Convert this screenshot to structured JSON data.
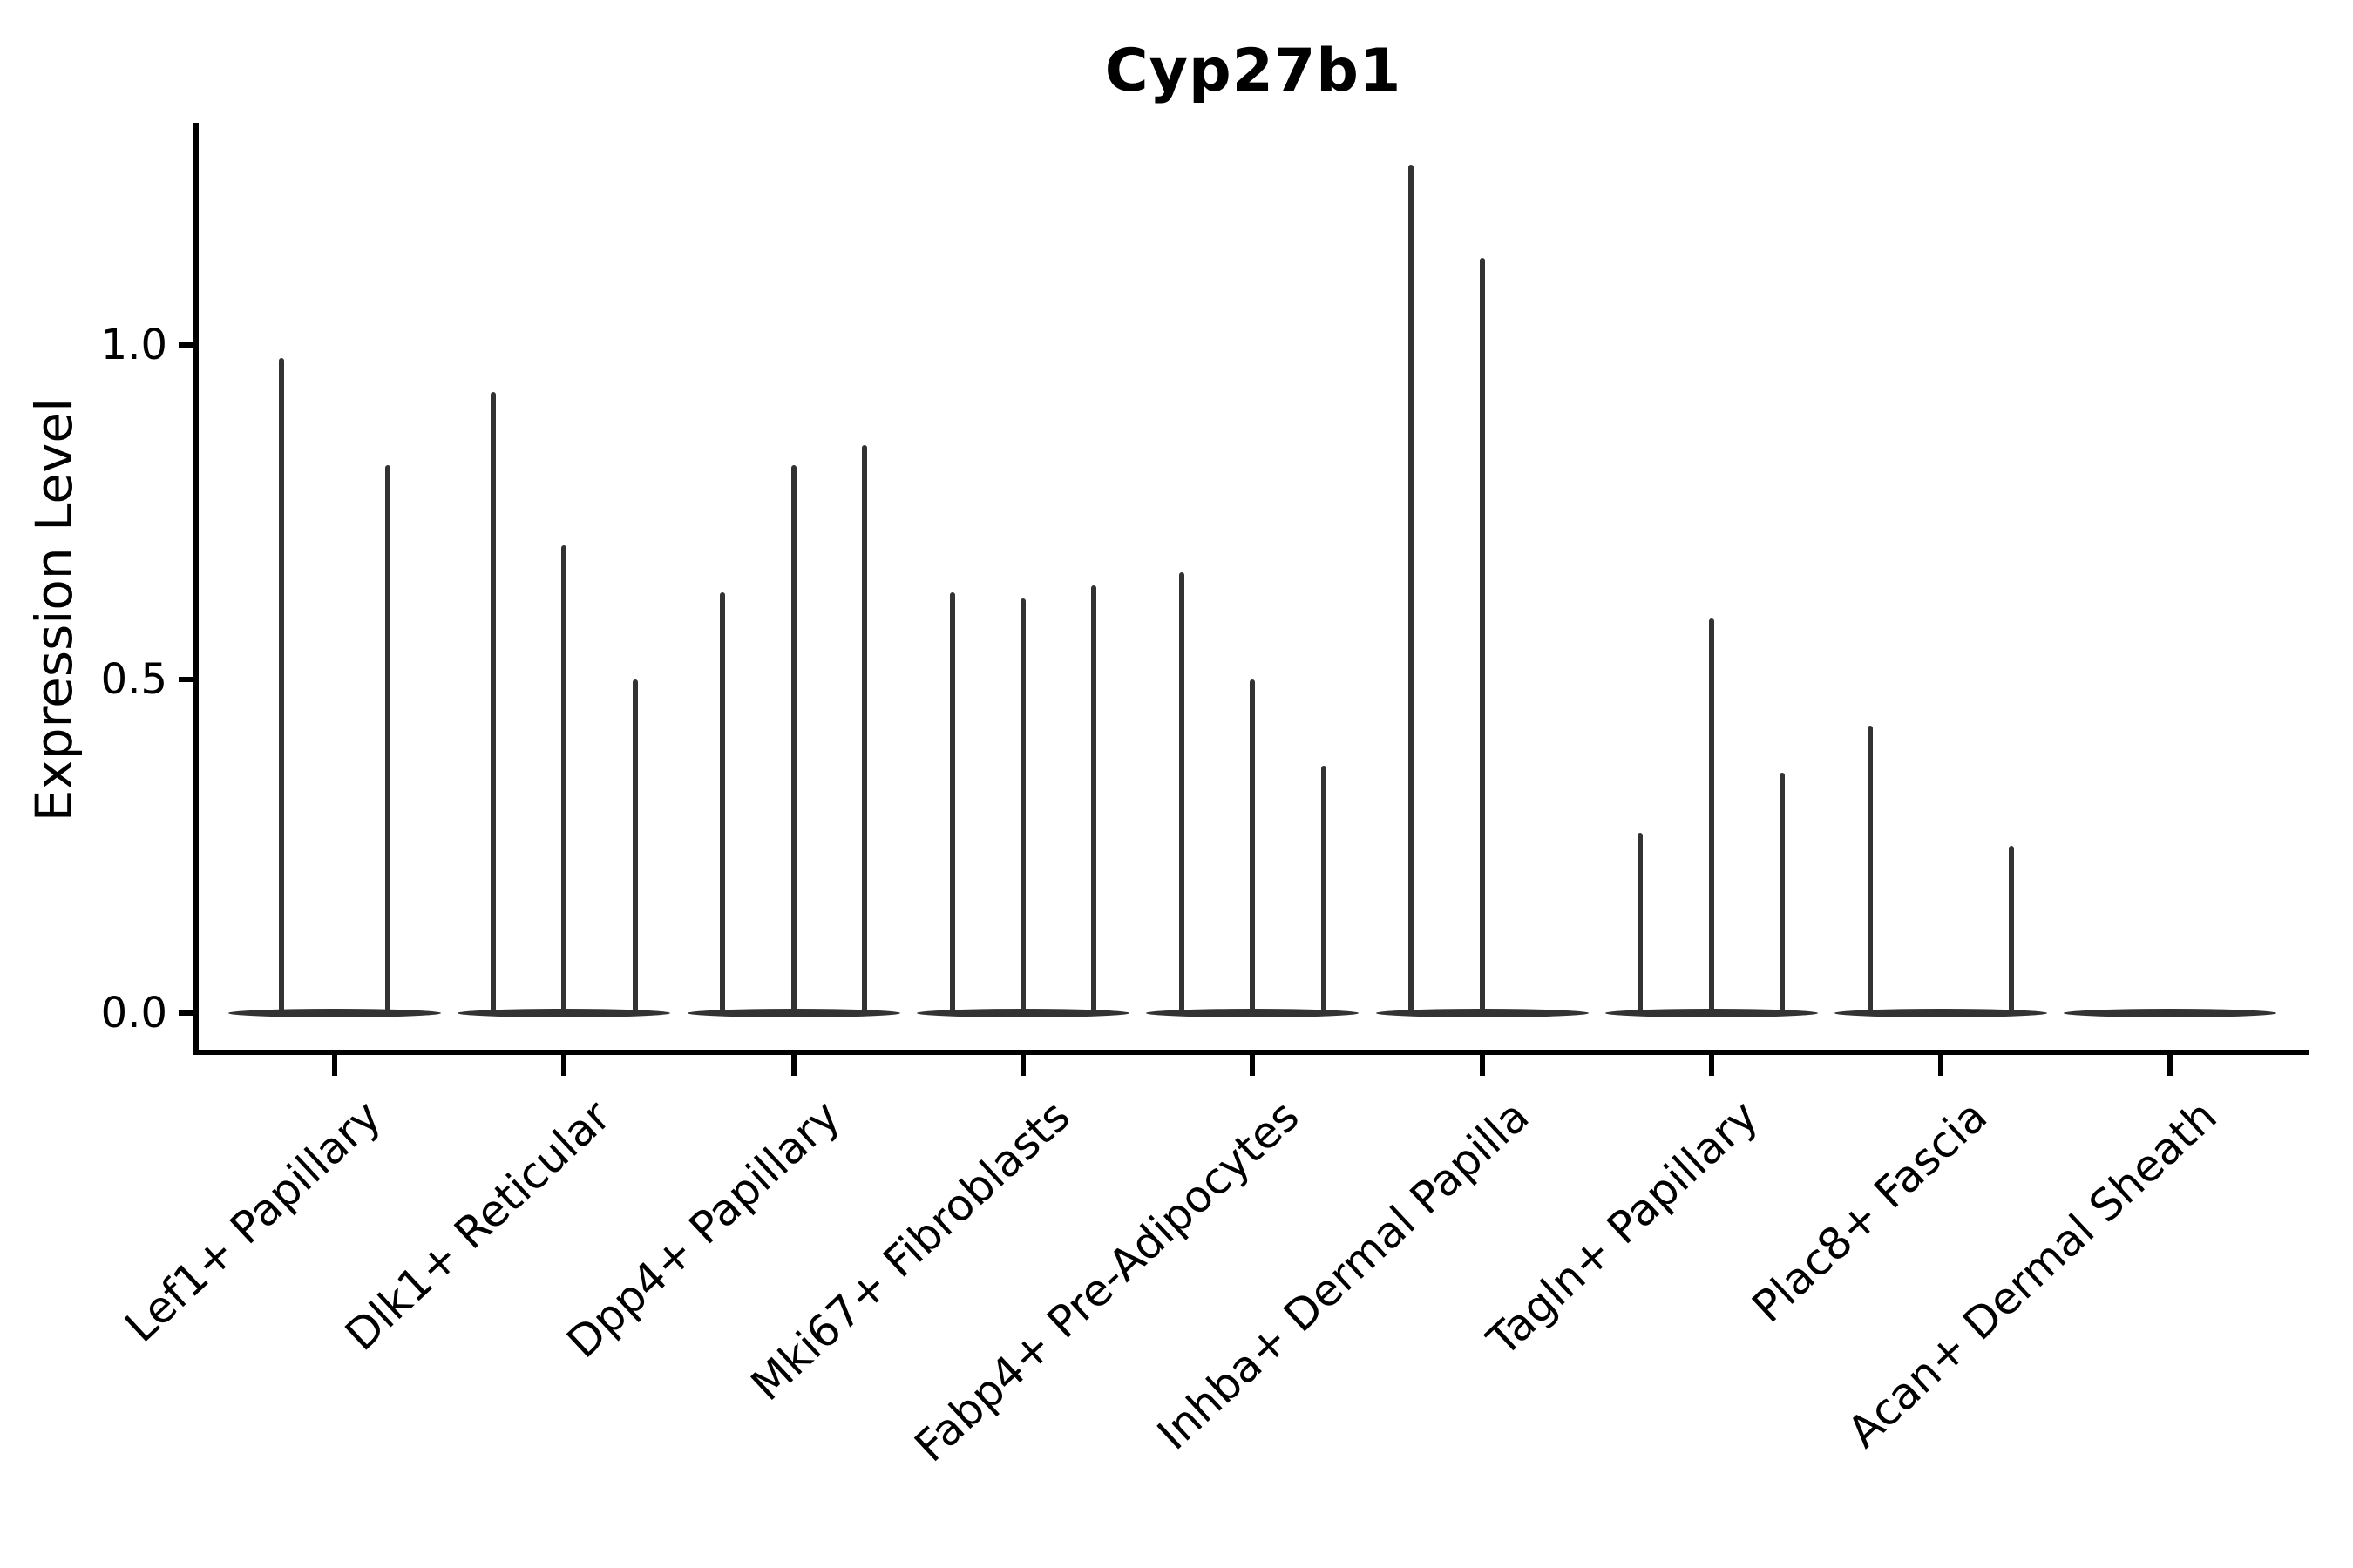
{
  "title": "Cyp27b1",
  "y_axis": {
    "label": "Expression Level",
    "tick_labels": [
      "1.0",
      "0.5",
      "0.0"
    ]
  },
  "chart_data": {
    "type": "violin",
    "title": "Cyp27b1",
    "xlabel": "",
    "ylabel": "Expression Level",
    "ylim": [
      0,
      1.33
    ],
    "yticks": [
      0.0,
      0.5,
      1.0
    ],
    "grid": false,
    "legend": "none",
    "orientation": "vertical",
    "note": "Grouped violin plot; each violin is a flat body at 0 expression with a thin spike up to its maximum value. Groups with fewer violins have wider slots; zero entries are flat violins with no spike.",
    "categories": [
      "Lef1+ Papillary",
      "Dlk1+ Reticular",
      "Dpp4+ Papillary",
      "Mki67+ Fibroblasts",
      "Fabp4+ Pre-Adipocytes",
      "Inhba+ Dermal Papilla",
      "Tagln+ Papillary",
      "Plac8+ Fascia",
      "Acan+ Dermal Sheath"
    ],
    "groups": [
      {
        "category": "Lef1+ Papillary",
        "violin_maxima": [
          0.98,
          0.82
        ]
      },
      {
        "category": "Dlk1+ Reticular",
        "violin_maxima": [
          0.93,
          0.7,
          0.5
        ]
      },
      {
        "category": "Dpp4+ Papillary",
        "violin_maxima": [
          0.63,
          0.82,
          0.85
        ]
      },
      {
        "category": "Mki67+ Fibroblasts",
        "violin_maxima": [
          0.63,
          0.62,
          0.64
        ]
      },
      {
        "category": "Fabp4+ Pre-Adipocytes",
        "violin_maxima": [
          0.66,
          0.5,
          0.37
        ]
      },
      {
        "category": "Inhba+ Dermal Papilla",
        "violin_maxima": [
          1.27,
          1.13,
          0
        ]
      },
      {
        "category": "Tagln+ Papillary",
        "violin_maxima": [
          0.27,
          0.59,
          0.36
        ]
      },
      {
        "category": "Plac8+ Fascia",
        "violin_maxima": [
          0.43,
          0,
          0.25
        ]
      },
      {
        "category": "Acan+ Dermal Sheath",
        "violin_maxima": [
          0,
          0,
          0
        ]
      }
    ],
    "colors": {
      "violin": "#333333",
      "axis": "#000000",
      "text": "#000000",
      "background": "#ffffff"
    }
  }
}
